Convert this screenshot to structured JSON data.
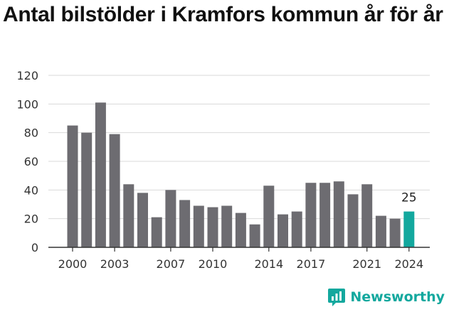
{
  "title": "Antal bilstölder i Kramfors kommun år för år",
  "brand": {
    "name": "Newsworthy",
    "icon": "newsworthy-logo-icon",
    "color": "#13a89e"
  },
  "chart_data": {
    "type": "bar",
    "title": "Antal bilstölder i Kramfors kommun år för år",
    "xlabel": "",
    "ylabel": "",
    "categories": [
      "2000",
      "2001",
      "2002",
      "2003",
      "2004",
      "2005",
      "2006",
      "2007",
      "2008",
      "2009",
      "2010",
      "2011",
      "2012",
      "2013",
      "2014",
      "2015",
      "2016",
      "2017",
      "2018",
      "2019",
      "2020",
      "2021",
      "2022",
      "2023",
      "2024"
    ],
    "series": [
      {
        "values": [
          85,
          80,
          101,
          79,
          44,
          38,
          21,
          40,
          33,
          29,
          28,
          29,
          24,
          16,
          43,
          23,
          25,
          45,
          45,
          46,
          37,
          44,
          22,
          20,
          25
        ]
      }
    ],
    "x_tick_labels": [
      "2000",
      "2003",
      "2007",
      "2010",
      "2014",
      "2017",
      "2021",
      "2024"
    ],
    "y_ticks": [
      0,
      20,
      40,
      60,
      80,
      100,
      120
    ],
    "ylim": [
      0,
      120
    ],
    "grid": true,
    "legend": "none",
    "bar_color": "#6d6c71",
    "highlight_color": "#13a89e",
    "highlight_category": "2024",
    "data_labels": [
      {
        "category": "2024",
        "text": "25"
      }
    ]
  }
}
